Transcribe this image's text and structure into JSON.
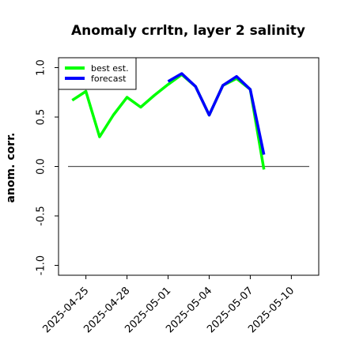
{
  "chart_data": {
    "type": "line",
    "title": "Anomaly crrltn, layer 2 salinity",
    "ylabel": "anom. corr.",
    "xlabel": "",
    "ylim": [
      -1.1,
      1.1
    ],
    "xlim": [
      "2025-04-23",
      "2025-05-12"
    ],
    "yticks": [
      "1.0",
      "0.5",
      "0.0",
      "-0.5",
      "-1.0"
    ],
    "yticks_values": [
      1.0,
      0.5,
      0.0,
      -0.5,
      -1.0
    ],
    "xticks": [
      "2025-04-25",
      "2025-04-28",
      "2025-05-01",
      "2025-05-04",
      "2025-05-07",
      "2025-05-10"
    ],
    "highlighted_tick": "2025-05-01",
    "highlight_color": "#228B22",
    "zero_line": true,
    "grid": false,
    "legend_position": "top-left",
    "series": [
      {
        "name": "best est.",
        "color": "#00ff00",
        "x": [
          "2025-04-24",
          "2025-04-25",
          "2025-04-26",
          "2025-04-27",
          "2025-04-28",
          "2025-04-29",
          "2025-04-30",
          "2025-05-01",
          "2025-05-02",
          "2025-05-03",
          "2025-05-04",
          "2025-05-05",
          "2025-05-06",
          "2025-05-07",
          "2025-05-08"
        ],
        "y": [
          0.67,
          0.76,
          0.3,
          0.52,
          0.7,
          0.6,
          0.72,
          0.83,
          0.93,
          0.81,
          0.52,
          0.82,
          0.89,
          0.78,
          -0.03
        ]
      },
      {
        "name": "forecast",
        "color": "#0000ff",
        "x": [
          "2025-05-01",
          "2025-05-02",
          "2025-05-03",
          "2025-05-04",
          "2025-05-05",
          "2025-05-06",
          "2025-05-07",
          "2025-05-08"
        ],
        "y": [
          0.86,
          0.94,
          0.81,
          0.52,
          0.82,
          0.91,
          0.78,
          0.12
        ]
      }
    ]
  }
}
